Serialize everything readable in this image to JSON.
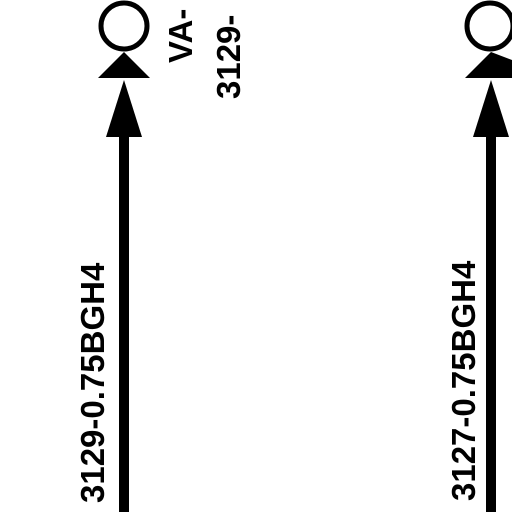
{
  "diagram": {
    "colors": {
      "line": "#000000",
      "background": "#ffffff"
    },
    "left_wire": {
      "label": "3129-0.75BGH4",
      "terminal_label_top": "VA-",
      "terminal_label_bottom": "3129-"
    },
    "right_wire": {
      "label": "3127-0.75BGH4"
    }
  }
}
